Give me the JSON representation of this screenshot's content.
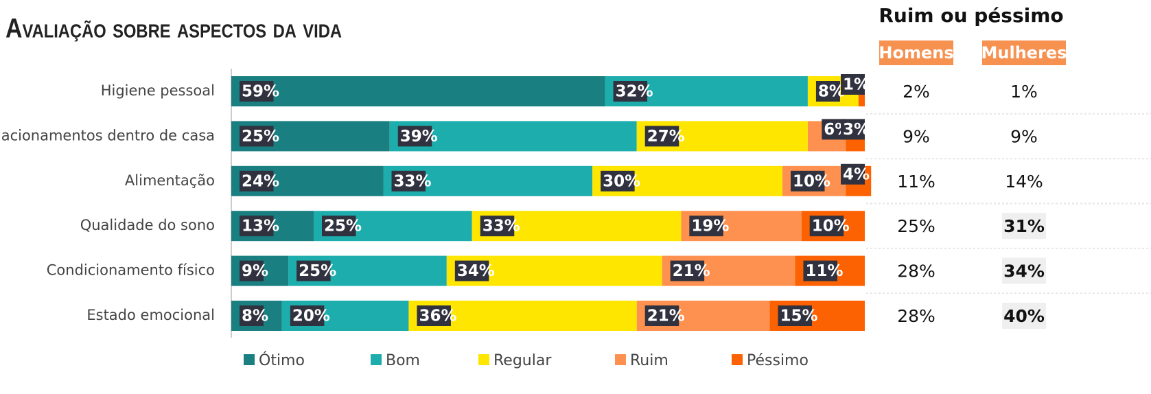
{
  "chart_data": {
    "type": "stacked_barh",
    "title": "Avaliação sobre aspectos da vida",
    "categories": [
      "Higiene pessoal",
      "Relacionamentos dentro de casa",
      "Alimentação",
      "Qualidade do sono",
      "Condicionamento físico",
      "Estado emocional"
    ],
    "xlim": [
      0,
      100
    ],
    "series": [
      {
        "name": "Ótimo",
        "color": "#1a7f80",
        "values": [
          59,
          25,
          24,
          13,
          9,
          8
        ],
        "value_labels": [
          "59%",
          "25%",
          "24%",
          "13%",
          "9%",
          "8%"
        ]
      },
      {
        "name": "Bom",
        "color": "#1eadad",
        "values": [
          32,
          39,
          33,
          25,
          25,
          20
        ],
        "value_labels": [
          "32%",
          "39%",
          "33%",
          "25%",
          "25%",
          "20%"
        ]
      },
      {
        "name": "Regular",
        "color": "#ffe600",
        "values": [
          8,
          27,
          30,
          33,
          34,
          36
        ],
        "value_labels": [
          "8%",
          "27%",
          "30%",
          "33%",
          "34%",
          "36%"
        ]
      },
      {
        "name": "Ruim",
        "color": "#ff9150",
        "values": [
          null,
          6,
          10,
          19,
          21,
          21
        ],
        "value_labels": [
          null,
          "6%",
          "10%",
          "19%",
          "21%",
          "21%"
        ]
      },
      {
        "name": "Péssimo",
        "color": "#fc6202",
        "values": [
          1,
          3,
          4,
          10,
          11,
          15
        ],
        "value_labels": [
          "1%",
          "3%",
          "4%",
          "10%",
          "11%",
          "15%"
        ]
      }
    ],
    "legend": "bottom"
  },
  "table": {
    "title": "Ruim ou péssimo",
    "columns": [
      "Homens",
      "Mulheres"
    ],
    "rows": [
      [
        "2%",
        "1%"
      ],
      [
        "9%",
        "9%"
      ],
      [
        "11%",
        "14%"
      ],
      [
        "25%",
        "31%"
      ],
      [
        "28%",
        "34%"
      ],
      [
        "28%",
        "40%"
      ]
    ],
    "highlight": [
      [
        false,
        false
      ],
      [
        false,
        false
      ],
      [
        false,
        false
      ],
      [
        false,
        true
      ],
      [
        false,
        true
      ],
      [
        false,
        true
      ]
    ]
  }
}
